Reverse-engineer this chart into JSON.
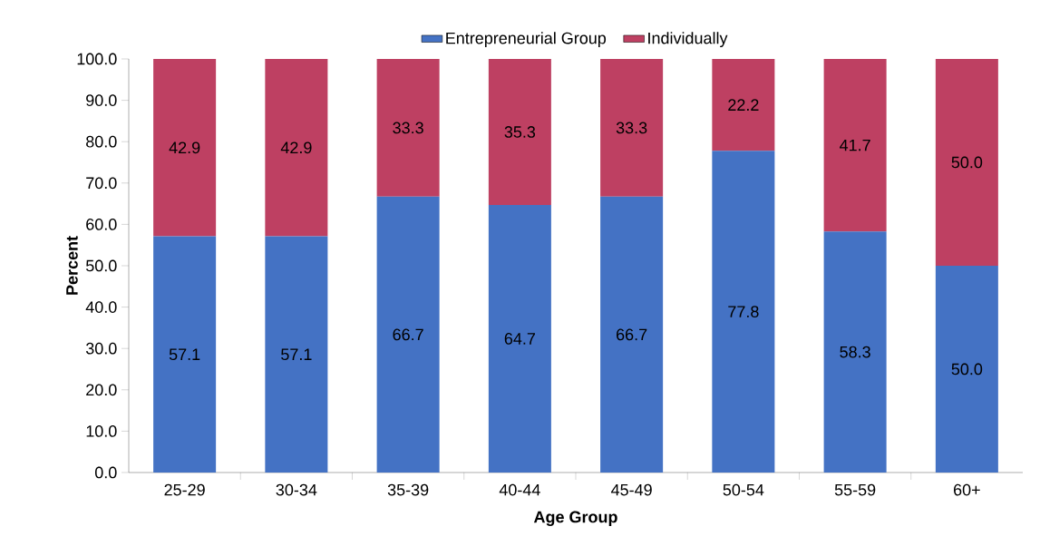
{
  "chart_data": {
    "type": "bar",
    "stacked": true,
    "xlabel": "Age Group",
    "ylabel": "Percent",
    "categories": [
      "25-29",
      "30-34",
      "35-39",
      "40-44",
      "45-49",
      "50-54",
      "55-59",
      "60+"
    ],
    "series": [
      {
        "name": "Entrepreneurial Group",
        "color": "#4472c4",
        "values": [
          57.1,
          57.1,
          66.7,
          64.7,
          66.7,
          77.8,
          58.3,
          50.0
        ],
        "value_labels": [
          "57.1",
          "57.1",
          "66.7",
          "64.7",
          "66.7",
          "77.8",
          "58.3",
          "50.0"
        ]
      },
      {
        "name": "Individually",
        "color": "#be4062",
        "values": [
          42.9,
          42.9,
          33.3,
          35.3,
          33.3,
          22.2,
          41.7,
          50.0
        ],
        "value_labels": [
          "42.9",
          "42.9",
          "33.3",
          "35.3",
          "33.3",
          "22.2",
          "41.7",
          "50.0"
        ]
      }
    ],
    "ylim": [
      0,
      100
    ],
    "yticks": [
      {
        "value": 0,
        "label": "0.0"
      },
      {
        "value": 10,
        "label": "10.0"
      },
      {
        "value": 20,
        "label": "20.0"
      },
      {
        "value": 30,
        "label": "30.0"
      },
      {
        "value": 40,
        "label": "40.0"
      },
      {
        "value": 50,
        "label": "50.0"
      },
      {
        "value": 60,
        "label": "60.0"
      },
      {
        "value": 70,
        "label": "70.0"
      },
      {
        "value": 80,
        "label": "80.0"
      },
      {
        "value": 90,
        "label": "90.0"
      },
      {
        "value": 100,
        "label": "100.0"
      }
    ],
    "grid": false,
    "legend": "top"
  }
}
